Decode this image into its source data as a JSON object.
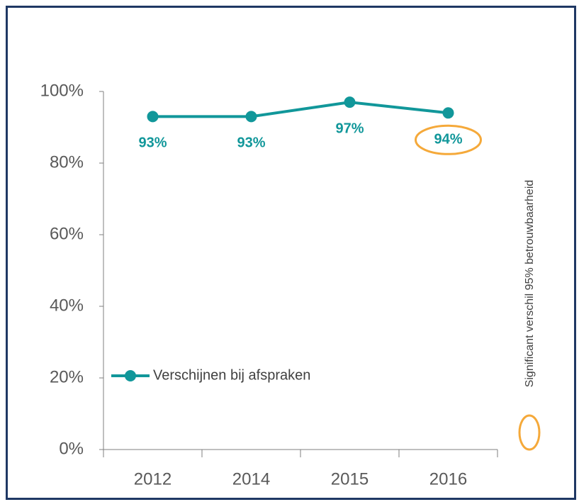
{
  "chart_data": {
    "type": "line",
    "categories": [
      "2012",
      "2014",
      "2015",
      "2016"
    ],
    "series": [
      {
        "name": "Verschijnen bij afspraken",
        "color": "#11979a",
        "values": [
          93,
          93,
          97,
          94
        ],
        "value_labels": [
          "93%",
          "93%",
          "97%",
          "94%"
        ]
      }
    ],
    "ylim": [
      0,
      100
    ],
    "yticks": [
      {
        "value": 0,
        "label": "0%"
      },
      {
        "value": 20,
        "label": "20%"
      },
      {
        "value": 40,
        "label": "40%"
      },
      {
        "value": 60,
        "label": "60%"
      },
      {
        "value": 80,
        "label": "80%"
      },
      {
        "value": 100,
        "label": "100%"
      }
    ],
    "grid": false,
    "legend": "lower left",
    "highlight_index": 3,
    "annotation": {
      "text": "Significant verschil 95% betrouwbaarheid",
      "color": "#f5a93a"
    }
  }
}
